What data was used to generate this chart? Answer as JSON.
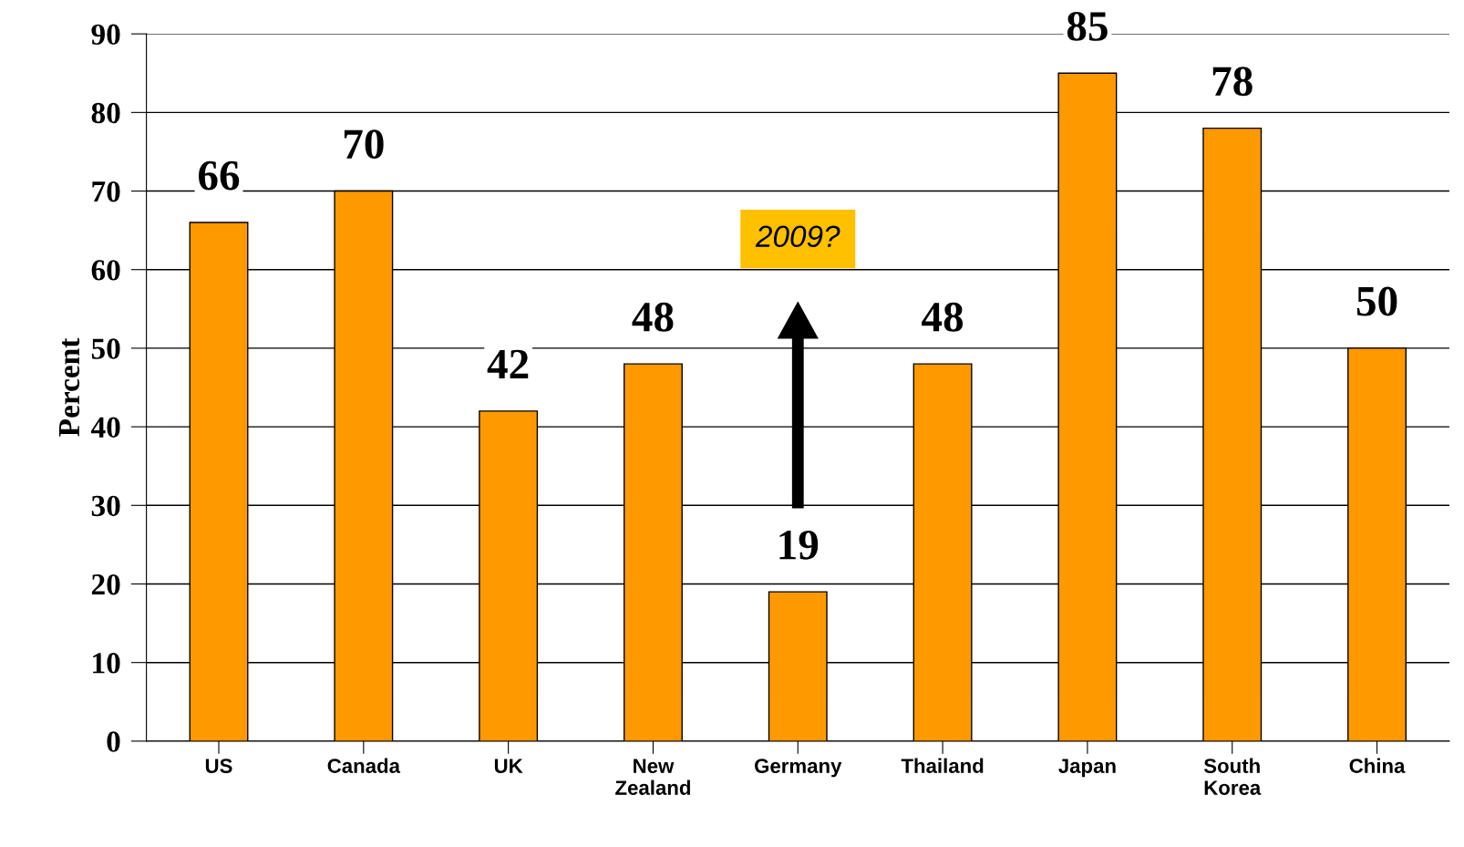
{
  "chart_data": {
    "type": "bar",
    "ylabel": "Percent",
    "categories": [
      "US",
      "Canada",
      "UK",
      "New\nZealand",
      "Germany",
      "Thailand",
      "Japan",
      "South\nKorea",
      "China"
    ],
    "values": [
      66,
      70,
      42,
      48,
      19,
      48,
      85,
      78,
      50
    ],
    "color": "#ff9900",
    "ylim": [
      0,
      90
    ],
    "yticks": [
      0,
      10,
      20,
      30,
      40,
      50,
      60,
      70,
      80,
      90
    ],
    "grid": "y",
    "data_labels": true,
    "annotations": [
      "2009?"
    ]
  }
}
